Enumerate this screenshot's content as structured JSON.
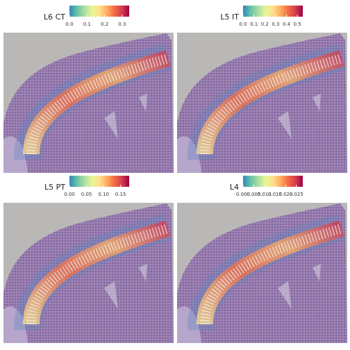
{
  "chart_data": [
    {
      "type": "spatial",
      "title": "L6 CT",
      "colormap": [
        "#3288bd",
        "#66c2a5",
        "#abdda4",
        "#e6f598",
        "#fee08b",
        "#fdae61",
        "#f46d43",
        "#d53e4f",
        "#9e0142"
      ],
      "colorbar_lim": [
        0,
        0.34
      ],
      "colorbar_ticks": [
        {
          "value": 0,
          "label": "0.0"
        },
        0.1,
        0.2,
        0.3
      ]
    },
    {
      "type": "spatial",
      "title": "L5 IT",
      "colormap": [
        "#3288bd",
        "#66c2a5",
        "#abdda4",
        "#e6f598",
        "#fee08b",
        "#fdae61",
        "#f46d43",
        "#d53e4f",
        "#9e0142"
      ],
      "colorbar_lim": [
        0,
        0.55
      ],
      "colorbar_ticks": [
        {
          "value": 0,
          "label": "0.0"
        },
        0.1,
        0.2,
        0.3,
        0.4,
        0.5
      ]
    },
    {
      "type": "spatial",
      "title": "L5 PT",
      "colormap": [
        "#3288bd",
        "#66c2a5",
        "#abdda4",
        "#e6f598",
        "#fee08b",
        "#fdae61",
        "#f46d43",
        "#d53e4f",
        "#9e0142"
      ],
      "colorbar_lim": [
        0,
        0.175
      ],
      "colorbar_ticks": [
        {
          "value": 0,
          "label": "0.00"
        },
        0.05,
        {
          "value": 0.1,
          "label": "0.10"
        },
        0.15
      ]
    },
    {
      "type": "spatial",
      "title": "L4",
      "colormap": [
        "#3288bd",
        "#66c2a5",
        "#abdda4",
        "#e6f598",
        "#fee08b",
        "#fdae61",
        "#f46d43",
        "#d53e4f",
        "#9e0142"
      ],
      "colorbar_lim": [
        0,
        0.028
      ],
      "colorbar_ticks": [
        {
          "value": 0,
          "label": "0.000"
        },
        0.005,
        {
          "value": 0.01,
          "label": "0.010"
        },
        0.015,
        {
          "value": 0.02,
          "label": "0.020"
        },
        0.025
      ]
    }
  ]
}
